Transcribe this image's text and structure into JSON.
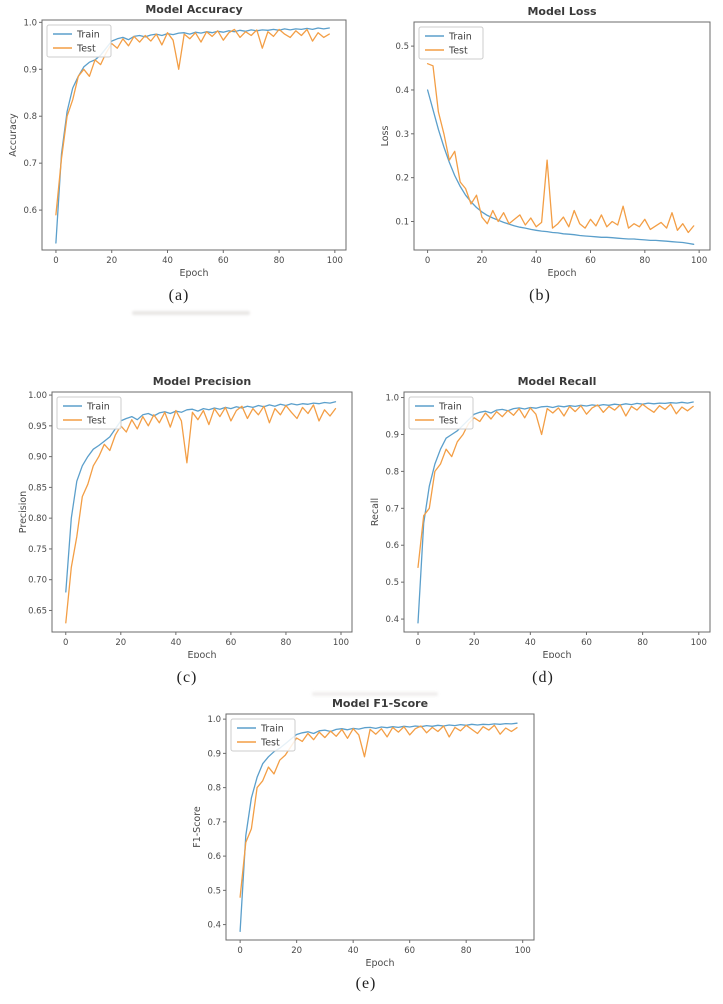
{
  "page": {
    "background": "#ffffff"
  },
  "colors": {
    "train": "#5b9fcb",
    "test": "#f39e45",
    "spine": "#6b6b6b",
    "text": "#4a4a4a",
    "legend_border": "#cccccc"
  },
  "legend": {
    "labels": [
      "Train",
      "Test"
    ],
    "position": "upper left"
  },
  "chart_data": [
    {
      "type": "line",
      "title": "Model Accuracy",
      "xlabel": "Epoch",
      "ylabel": "Accuracy",
      "caption": "(a)",
      "xlim": [
        -5,
        104
      ],
      "ylim": [
        0.515,
        1.005
      ],
      "xticks": [
        0,
        20,
        40,
        60,
        80,
        100
      ],
      "xtick_labels": [
        "0",
        "20",
        "40",
        "60",
        "80",
        "100"
      ],
      "yticks": [
        0.6,
        0.7,
        0.8,
        0.9,
        1.0
      ],
      "ytick_labels": [
        "0.6",
        "0.7",
        "0.8",
        "0.9",
        "1.0"
      ],
      "x": [
        0,
        2,
        4,
        6,
        8,
        10,
        12,
        14,
        16,
        18,
        20,
        22,
        24,
        26,
        28,
        30,
        32,
        34,
        36,
        38,
        40,
        42,
        44,
        46,
        48,
        50,
        52,
        54,
        56,
        58,
        60,
        62,
        64,
        66,
        68,
        70,
        72,
        74,
        76,
        78,
        80,
        82,
        84,
        86,
        88,
        90,
        92,
        94,
        96,
        98
      ],
      "series": [
        {
          "name": "Train",
          "color_key": "train",
          "values": [
            0.53,
            0.72,
            0.81,
            0.86,
            0.885,
            0.905,
            0.915,
            0.92,
            0.93,
            0.945,
            0.96,
            0.965,
            0.968,
            0.963,
            0.97,
            0.972,
            0.969,
            0.973,
            0.975,
            0.972,
            0.976,
            0.974,
            0.977,
            0.978,
            0.975,
            0.979,
            0.977,
            0.98,
            0.978,
            0.981,
            0.979,
            0.982,
            0.98,
            0.983,
            0.981,
            0.984,
            0.982,
            0.984,
            0.983,
            0.985,
            0.983,
            0.986,
            0.984,
            0.986,
            0.985,
            0.987,
            0.985,
            0.988,
            0.986,
            0.988
          ]
        },
        {
          "name": "Test",
          "color_key": "test",
          "values": [
            0.59,
            0.71,
            0.8,
            0.835,
            0.885,
            0.9,
            0.885,
            0.92,
            0.91,
            0.935,
            0.955,
            0.945,
            0.965,
            0.95,
            0.97,
            0.958,
            0.972,
            0.96,
            0.975,
            0.952,
            0.978,
            0.962,
            0.9,
            0.975,
            0.965,
            0.978,
            0.958,
            0.98,
            0.97,
            0.982,
            0.962,
            0.978,
            0.985,
            0.968,
            0.98,
            0.972,
            0.984,
            0.945,
            0.98,
            0.97,
            0.985,
            0.975,
            0.968,
            0.982,
            0.972,
            0.985,
            0.96,
            0.978,
            0.968,
            0.975
          ]
        }
      ]
    },
    {
      "type": "line",
      "title": "Model Loss",
      "xlabel": "Epoch",
      "ylabel": "Loss",
      "caption": "(b)",
      "xlim": [
        -5,
        104
      ],
      "ylim": [
        0.035,
        0.555
      ],
      "xticks": [
        0,
        20,
        40,
        60,
        80,
        100
      ],
      "xtick_labels": [
        "0",
        "20",
        "40",
        "60",
        "80",
        "100"
      ],
      "yticks": [
        0.1,
        0.2,
        0.3,
        0.4,
        0.5
      ],
      "ytick_labels": [
        "0.1",
        "0.2",
        "0.3",
        "0.4",
        "0.5"
      ],
      "x": [
        0,
        2,
        4,
        6,
        8,
        10,
        12,
        14,
        16,
        18,
        20,
        22,
        24,
        26,
        28,
        30,
        32,
        34,
        36,
        38,
        40,
        42,
        44,
        46,
        48,
        50,
        52,
        54,
        56,
        58,
        60,
        62,
        64,
        66,
        68,
        70,
        72,
        74,
        76,
        78,
        80,
        82,
        84,
        86,
        88,
        90,
        92,
        94,
        96,
        98
      ],
      "series": [
        {
          "name": "Train",
          "color_key": "train",
          "values": [
            0.4,
            0.355,
            0.31,
            0.27,
            0.235,
            0.205,
            0.18,
            0.16,
            0.145,
            0.132,
            0.122,
            0.114,
            0.108,
            0.103,
            0.098,
            0.094,
            0.09,
            0.087,
            0.085,
            0.082,
            0.08,
            0.078,
            0.077,
            0.075,
            0.074,
            0.072,
            0.071,
            0.07,
            0.068,
            0.067,
            0.066,
            0.065,
            0.064,
            0.064,
            0.063,
            0.062,
            0.061,
            0.06,
            0.06,
            0.059,
            0.058,
            0.057,
            0.057,
            0.056,
            0.055,
            0.054,
            0.053,
            0.052,
            0.05,
            0.048
          ]
        },
        {
          "name": "Test",
          "color_key": "test",
          "values": [
            0.46,
            0.455,
            0.35,
            0.3,
            0.24,
            0.26,
            0.19,
            0.175,
            0.14,
            0.16,
            0.11,
            0.095,
            0.125,
            0.1,
            0.12,
            0.095,
            0.105,
            0.115,
            0.092,
            0.108,
            0.088,
            0.098,
            0.24,
            0.085,
            0.095,
            0.11,
            0.088,
            0.125,
            0.095,
            0.085,
            0.105,
            0.09,
            0.115,
            0.088,
            0.1,
            0.092,
            0.135,
            0.085,
            0.095,
            0.088,
            0.105,
            0.082,
            0.09,
            0.098,
            0.085,
            0.12,
            0.08,
            0.095,
            0.075,
            0.09
          ]
        }
      ]
    },
    {
      "type": "line",
      "title": "Model Precision",
      "xlabel": "Epoch",
      "ylabel": "Precision",
      "caption": "(c)",
      "xlim": [
        -5,
        104
      ],
      "ylim": [
        0.615,
        1.005
      ],
      "xticks": [
        0,
        20,
        40,
        60,
        80,
        100
      ],
      "xtick_labels": [
        "0",
        "20",
        "40",
        "60",
        "80",
        "100"
      ],
      "yticks": [
        0.65,
        0.7,
        0.75,
        0.8,
        0.85,
        0.9,
        0.95,
        1.0
      ],
      "ytick_labels": [
        "0.65",
        "0.70",
        "0.75",
        "0.80",
        "0.85",
        "0.90",
        "0.95",
        "1.00"
      ],
      "x": [
        0,
        2,
        4,
        6,
        8,
        10,
        12,
        14,
        16,
        18,
        20,
        22,
        24,
        26,
        28,
        30,
        32,
        34,
        36,
        38,
        40,
        42,
        44,
        46,
        48,
        50,
        52,
        54,
        56,
        58,
        60,
        62,
        64,
        66,
        68,
        70,
        72,
        74,
        76,
        78,
        80,
        82,
        84,
        86,
        88,
        90,
        92,
        94,
        96,
        98
      ],
      "series": [
        {
          "name": "Train",
          "color_key": "train",
          "values": [
            0.68,
            0.8,
            0.86,
            0.885,
            0.9,
            0.912,
            0.918,
            0.925,
            0.932,
            0.945,
            0.958,
            0.962,
            0.965,
            0.96,
            0.968,
            0.97,
            0.966,
            0.971,
            0.973,
            0.97,
            0.974,
            0.972,
            0.976,
            0.977,
            0.974,
            0.978,
            0.976,
            0.979,
            0.977,
            0.98,
            0.978,
            0.981,
            0.979,
            0.982,
            0.98,
            0.983,
            0.981,
            0.984,
            0.982,
            0.985,
            0.983,
            0.986,
            0.984,
            0.986,
            0.985,
            0.987,
            0.986,
            0.988,
            0.987,
            0.989
          ]
        },
        {
          "name": "Test",
          "color_key": "test",
          "values": [
            0.63,
            0.72,
            0.77,
            0.835,
            0.855,
            0.885,
            0.9,
            0.92,
            0.91,
            0.935,
            0.95,
            0.94,
            0.96,
            0.945,
            0.965,
            0.95,
            0.968,
            0.955,
            0.972,
            0.948,
            0.975,
            0.958,
            0.89,
            0.972,
            0.96,
            0.975,
            0.952,
            0.978,
            0.965,
            0.98,
            0.958,
            0.975,
            0.982,
            0.962,
            0.978,
            0.968,
            0.982,
            0.955,
            0.978,
            0.968,
            0.983,
            0.972,
            0.962,
            0.98,
            0.97,
            0.984,
            0.958,
            0.976,
            0.966,
            0.978
          ]
        }
      ]
    },
    {
      "type": "line",
      "title": "Model Recall",
      "xlabel": "Epoch",
      "ylabel": "Recall",
      "caption": "(d)",
      "xlim": [
        -5,
        104
      ],
      "ylim": [
        0.365,
        1.015
      ],
      "xticks": [
        0,
        20,
        40,
        60,
        80,
        100
      ],
      "xtick_labels": [
        "0",
        "20",
        "40",
        "60",
        "80",
        "100"
      ],
      "yticks": [
        0.4,
        0.5,
        0.6,
        0.7,
        0.8,
        0.9,
        1.0
      ],
      "ytick_labels": [
        "0.4",
        "0.5",
        "0.6",
        "0.7",
        "0.8",
        "0.9",
        "1.0"
      ],
      "x": [
        0,
        2,
        4,
        6,
        8,
        10,
        12,
        14,
        16,
        18,
        20,
        22,
        24,
        26,
        28,
        30,
        32,
        34,
        36,
        38,
        40,
        42,
        44,
        46,
        48,
        50,
        52,
        54,
        56,
        58,
        60,
        62,
        64,
        66,
        68,
        70,
        72,
        74,
        76,
        78,
        80,
        82,
        84,
        86,
        88,
        90,
        92,
        94,
        96,
        98
      ],
      "series": [
        {
          "name": "Train",
          "color_key": "train",
          "values": [
            0.39,
            0.66,
            0.76,
            0.82,
            0.86,
            0.89,
            0.9,
            0.91,
            0.925,
            0.94,
            0.955,
            0.96,
            0.963,
            0.958,
            0.966,
            0.968,
            0.964,
            0.97,
            0.972,
            0.969,
            0.973,
            0.971,
            0.975,
            0.976,
            0.973,
            0.977,
            0.975,
            0.978,
            0.976,
            0.979,
            0.977,
            0.98,
            0.978,
            0.981,
            0.979,
            0.982,
            0.98,
            0.983,
            0.981,
            0.984,
            0.982,
            0.985,
            0.983,
            0.985,
            0.984,
            0.986,
            0.985,
            0.987,
            0.985,
            0.988
          ]
        },
        {
          "name": "Test",
          "color_key": "test",
          "values": [
            0.54,
            0.68,
            0.7,
            0.8,
            0.82,
            0.86,
            0.84,
            0.88,
            0.9,
            0.93,
            0.945,
            0.935,
            0.958,
            0.942,
            0.962,
            0.948,
            0.965,
            0.952,
            0.97,
            0.945,
            0.972,
            0.955,
            0.9,
            0.97,
            0.958,
            0.972,
            0.95,
            0.976,
            0.962,
            0.978,
            0.955,
            0.972,
            0.98,
            0.96,
            0.976,
            0.966,
            0.98,
            0.95,
            0.976,
            0.966,
            0.982,
            0.97,
            0.96,
            0.978,
            0.968,
            0.982,
            0.956,
            0.974,
            0.964,
            0.976
          ]
        }
      ]
    },
    {
      "type": "line",
      "title": "Model F1-Score",
      "xlabel": "Epoch",
      "ylabel": "F1-Score",
      "caption": "(e)",
      "xlim": [
        -5,
        104
      ],
      "ylim": [
        0.355,
        1.015
      ],
      "xticks": [
        0,
        20,
        40,
        60,
        80,
        100
      ],
      "xtick_labels": [
        "0",
        "20",
        "40",
        "60",
        "80",
        "100"
      ],
      "yticks": [
        0.4,
        0.5,
        0.6,
        0.7,
        0.8,
        0.9,
        1.0
      ],
      "ytick_labels": [
        "0.4",
        "0.5",
        "0.6",
        "0.7",
        "0.8",
        "0.9",
        "1.0"
      ],
      "x": [
        0,
        2,
        4,
        6,
        8,
        10,
        12,
        14,
        16,
        18,
        20,
        22,
        24,
        26,
        28,
        30,
        32,
        34,
        36,
        38,
        40,
        42,
        44,
        46,
        48,
        50,
        52,
        54,
        56,
        58,
        60,
        62,
        64,
        66,
        68,
        70,
        72,
        74,
        76,
        78,
        80,
        82,
        84,
        86,
        88,
        90,
        92,
        94,
        96,
        98
      ],
      "series": [
        {
          "name": "Train",
          "color_key": "train",
          "values": [
            0.38,
            0.66,
            0.77,
            0.83,
            0.87,
            0.89,
            0.905,
            0.915,
            0.928,
            0.942,
            0.955,
            0.96,
            0.963,
            0.958,
            0.966,
            0.968,
            0.964,
            0.97,
            0.972,
            0.969,
            0.973,
            0.971,
            0.975,
            0.976,
            0.973,
            0.977,
            0.975,
            0.978,
            0.976,
            0.979,
            0.977,
            0.98,
            0.978,
            0.981,
            0.979,
            0.982,
            0.98,
            0.983,
            0.981,
            0.984,
            0.982,
            0.985,
            0.983,
            0.985,
            0.984,
            0.986,
            0.985,
            0.987,
            0.986,
            0.988
          ]
        },
        {
          "name": "Test",
          "color_key": "test",
          "values": [
            0.48,
            0.64,
            0.68,
            0.8,
            0.82,
            0.86,
            0.84,
            0.88,
            0.895,
            0.92,
            0.945,
            0.935,
            0.958,
            0.94,
            0.962,
            0.946,
            0.965,
            0.95,
            0.97,
            0.944,
            0.972,
            0.954,
            0.89,
            0.97,
            0.956,
            0.972,
            0.948,
            0.976,
            0.962,
            0.978,
            0.954,
            0.972,
            0.98,
            0.96,
            0.976,
            0.964,
            0.98,
            0.948,
            0.976,
            0.966,
            0.982,
            0.97,
            0.958,
            0.978,
            0.968,
            0.982,
            0.956,
            0.974,
            0.964,
            0.975
          ]
        }
      ]
    }
  ]
}
